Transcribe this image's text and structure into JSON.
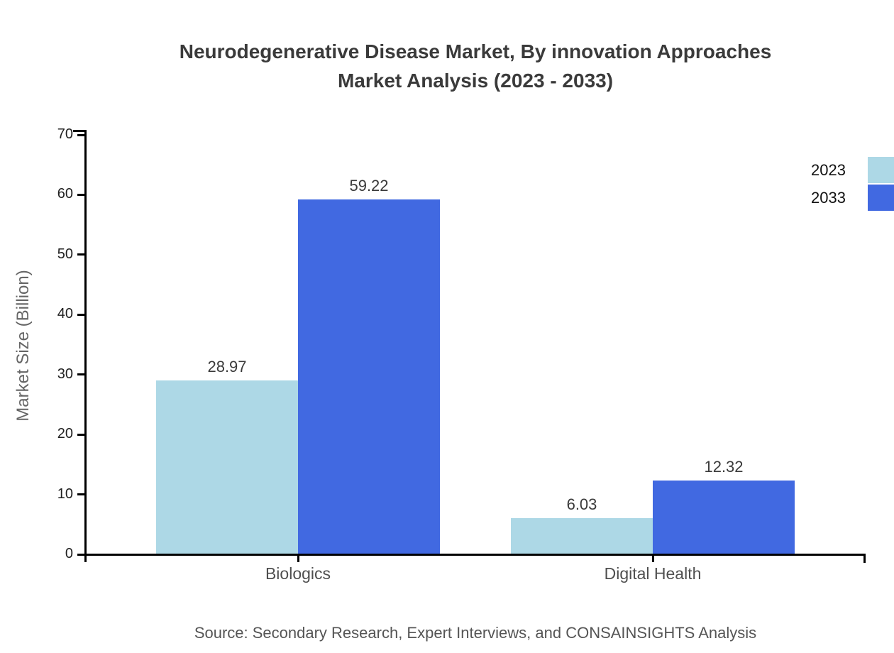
{
  "header": {
    "title_line1": "Neurodegenerative Disease Market, By innovation Approaches",
    "title_line2": "Market Analysis (2023 - 2033)"
  },
  "footer": {
    "source": "Source: Secondary Research, Expert Interviews, and CONSAINSIGHTS Analysis"
  },
  "chart_data": {
    "type": "bar",
    "title": "Neurodegenerative Disease Market, By innovation Approaches Market Analysis (2023 - 2033)",
    "categories": [
      "Biologics",
      "Digital Health"
    ],
    "series": [
      {
        "name": "2023",
        "color": "#ADD8E6",
        "values": [
          28.97,
          6.03
        ],
        "labels": [
          "28.97",
          "6.03"
        ]
      },
      {
        "name": "2033",
        "color": "#4169E1",
        "values": [
          59.22,
          12.32
        ],
        "labels": [
          "59.22",
          "12.32"
        ]
      }
    ],
    "xlabel": "",
    "ylabel": "Market Size (Billion)",
    "ylim": [
      0,
      70
    ],
    "yticks": [
      0,
      10,
      20,
      30,
      40,
      50,
      60,
      70
    ],
    "grid": false,
    "legend_position": "top-right",
    "value_labels_shown": true,
    "axis_color": "#000000"
  }
}
